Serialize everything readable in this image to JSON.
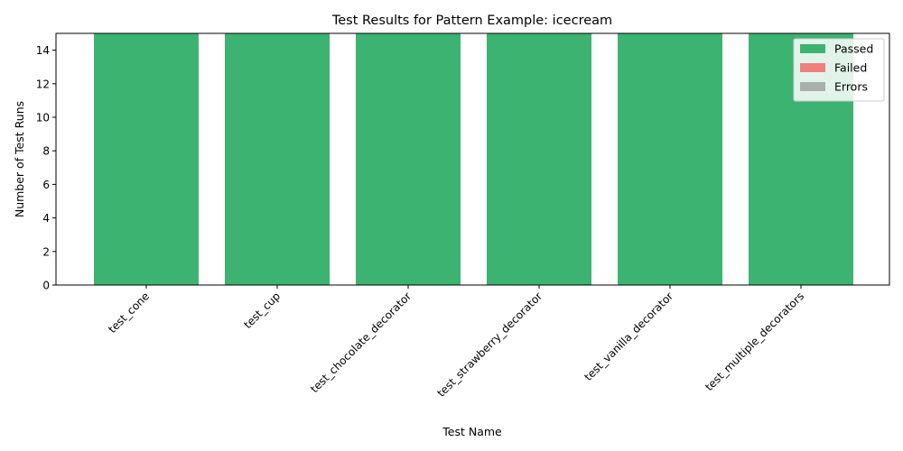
{
  "chart_data": {
    "type": "bar",
    "stacked": true,
    "title": "Test Results for Pattern Example: icecream",
    "xlabel": "Test Name",
    "ylabel": "Number of Test Runs",
    "ylim": [
      0,
      15
    ],
    "yticks": [
      0,
      2,
      4,
      6,
      8,
      10,
      12,
      14
    ],
    "legend_position": "top-right",
    "categories": [
      "test_cone",
      "test_cup",
      "test_chocolate_decorator",
      "test_strawberry_decorator",
      "test_vanilla_decorator",
      "test_multiple_decorators"
    ],
    "series": [
      {
        "name": "Passed",
        "color": "#3cb371",
        "values": [
          15,
          15,
          15,
          15,
          15,
          15
        ]
      },
      {
        "name": "Failed",
        "color": "#f08080",
        "values": [
          0,
          0,
          0,
          0,
          0,
          0
        ]
      },
      {
        "name": "Errors",
        "color": "#a9b0ab",
        "values": [
          0,
          0,
          0,
          0,
          0,
          0
        ]
      }
    ]
  }
}
